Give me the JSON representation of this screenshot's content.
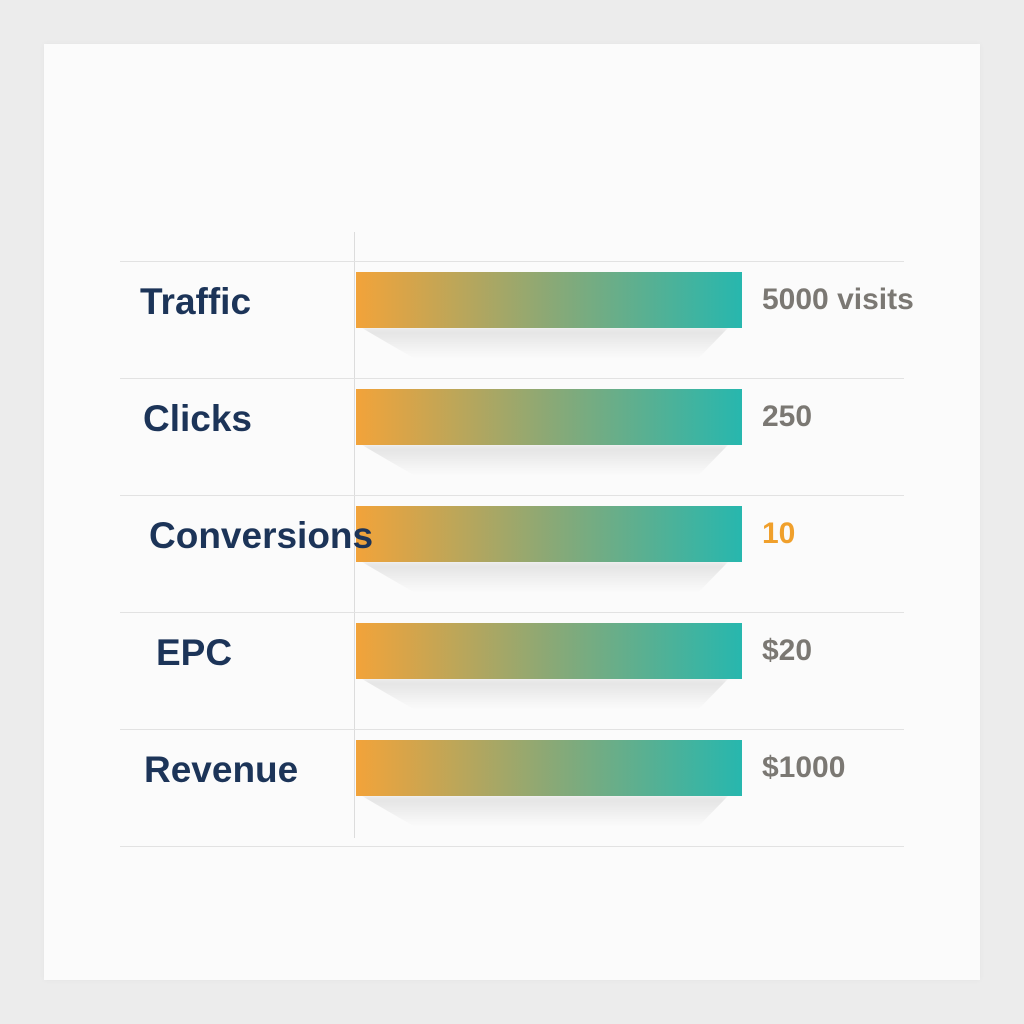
{
  "colors": {
    "label": "#1c3458",
    "value": "#7b7873",
    "value_highlight": "#f0a02c",
    "bar_start": "#f2a33a",
    "bar_end": "#27b7ae"
  },
  "chart_data": {
    "type": "bar",
    "orientation": "horizontal",
    "title": "",
    "xlabel": "",
    "ylabel": "",
    "grid": true,
    "categories": [
      "Traffic",
      "Clicks",
      "Conversions",
      "EPC",
      "Revenue"
    ],
    "values": [
      5000,
      250,
      10,
      20,
      1000
    ],
    "value_labels": [
      "5000 visits",
      "250",
      "10",
      "$20",
      "$1000"
    ],
    "highlighted": [
      "Conversions"
    ]
  }
}
